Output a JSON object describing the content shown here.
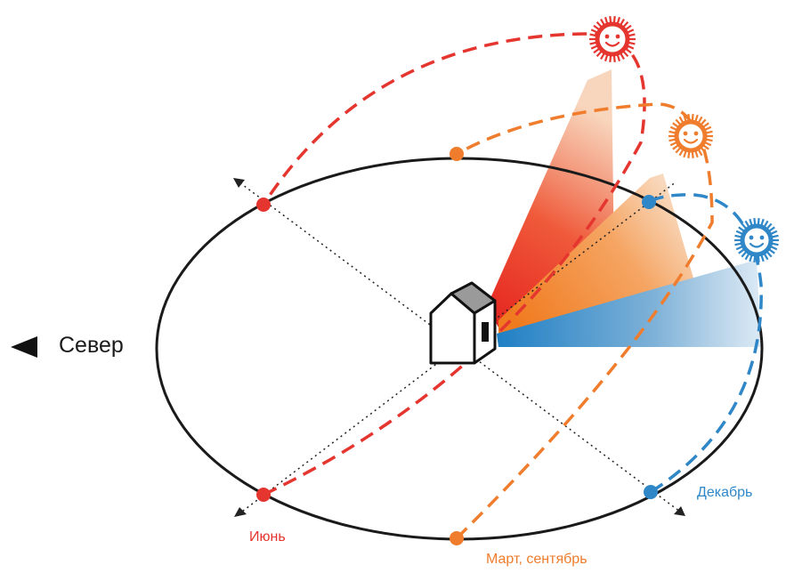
{
  "diagram": {
    "north_label": "Север",
    "seasons": {
      "june": {
        "label": "Июнь",
        "color": "#e5352f"
      },
      "equinox": {
        "label": "Март, сентябрь",
        "color": "#ef7d2d"
      },
      "december": {
        "label": "Декабрь",
        "color": "#2f87c8"
      }
    },
    "icons": {
      "north": "left-triangle-arrow-icon",
      "house": "house-icon",
      "sun": "smiling-sun-icon"
    }
  }
}
